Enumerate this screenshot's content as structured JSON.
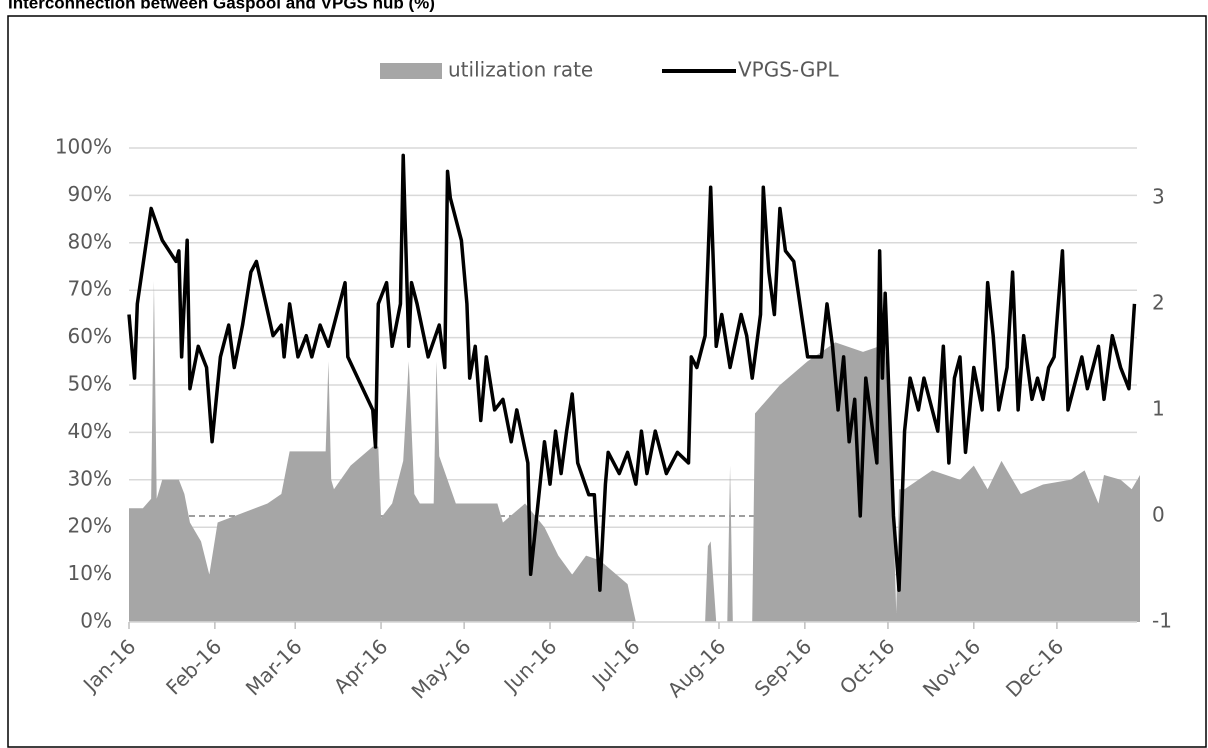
{
  "chart_data": {
    "type": "area-line",
    "title": "Interconnection between Gaspool and VPGS hub (%)",
    "xlim": [
      0,
      365
    ],
    "xticks": [
      {
        "value": 0,
        "label": "Jan-16"
      },
      {
        "value": 31,
        "label": "Feb-16"
      },
      {
        "value": 60,
        "label": "Mar-16"
      },
      {
        "value": 91,
        "label": "Apr-16"
      },
      {
        "value": 121,
        "label": "May-16"
      },
      {
        "value": 152,
        "label": "Jun-16"
      },
      {
        "value": 182,
        "label": "Jul-16"
      },
      {
        "value": 213,
        "label": "Aug-16"
      },
      {
        "value": 244,
        "label": "Sep-16"
      },
      {
        "value": 274,
        "label": "Oct-16"
      },
      {
        "value": 305,
        "label": "Nov-16"
      },
      {
        "value": 335,
        "label": "Dec-16"
      }
    ],
    "ylim": [
      0,
      100
    ],
    "yticks": [
      {
        "value": 0,
        "label": "0%"
      },
      {
        "value": 10,
        "label": "10%"
      },
      {
        "value": 20,
        "label": "20%"
      },
      {
        "value": 30,
        "label": "30%"
      },
      {
        "value": 40,
        "label": "40%"
      },
      {
        "value": 50,
        "label": "50%"
      },
      {
        "value": 60,
        "label": "60%"
      },
      {
        "value": 70,
        "label": "70%"
      },
      {
        "value": 80,
        "label": "80%"
      },
      {
        "value": 90,
        "label": "90%"
      },
      {
        "value": 100,
        "label": "100%"
      }
    ],
    "y2lim": [
      -1,
      3.47
    ],
    "y2ticks": [
      -1,
      0,
      1,
      2,
      3
    ],
    "grid": true,
    "legend": "top",
    "series": [
      {
        "name": "utilization rate",
        "type": "area",
        "color": "#a6a6a6",
        "x": [
          0,
          5,
          8,
          9,
          10,
          12,
          18,
          20,
          22,
          26,
          29,
          32,
          50,
          55,
          58,
          70,
          71,
          72,
          73,
          74,
          80,
          88,
          90,
          91,
          95,
          99,
          101,
          103,
          105,
          110,
          111,
          112,
          118,
          130,
          133,
          135,
          143,
          150,
          155,
          160,
          165,
          170,
          180,
          183,
          208,
          209,
          210,
          212,
          213,
          216,
          217,
          218,
          219,
          225,
          226,
          235,
          245,
          250,
          255,
          265,
          270,
          273,
          275,
          277,
          278,
          280,
          290,
          300,
          305,
          310,
          315,
          322,
          330,
          340,
          345,
          350,
          352,
          358,
          362,
          365
        ],
        "values": [
          24,
          24,
          26,
          72,
          26,
          30,
          30,
          27,
          21,
          17,
          10,
          21,
          25,
          27,
          36,
          36,
          36,
          55,
          30,
          28,
          33,
          37,
          37,
          22,
          25,
          34,
          55,
          27,
          25,
          25,
          55,
          35,
          25,
          25,
          25,
          21,
          25,
          20,
          14,
          10,
          14,
          13,
          8,
          0,
          0,
          16,
          17,
          0,
          0,
          0,
          33,
          0,
          0,
          0,
          44,
          50,
          55,
          57,
          59,
          57,
          58,
          57,
          40,
          2,
          28,
          28,
          32,
          30,
          33,
          28,
          34,
          27,
          29,
          30,
          32,
          25,
          31,
          30,
          28,
          31
        ]
      },
      {
        "name": "VPGS-GPL",
        "type": "line",
        "color": "#000000",
        "axis": "y2",
        "x": [
          0,
          2,
          3,
          8,
          12,
          17,
          18,
          19,
          21,
          22,
          25,
          28,
          30,
          33,
          36,
          38,
          41,
          44,
          46,
          52,
          55,
          56,
          58,
          61,
          64,
          66,
          69,
          72,
          78,
          79,
          88,
          89,
          90,
          93,
          95,
          98,
          99,
          101,
          102,
          104,
          108,
          112,
          114,
          115,
          116,
          120,
          122,
          123,
          125,
          127,
          129,
          132,
          135,
          138,
          140,
          144,
          145,
          148,
          150,
          152,
          154,
          156,
          158,
          160,
          162,
          166,
          168,
          170,
          172,
          173,
          177,
          180,
          183,
          185,
          187,
          190,
          194,
          198,
          202,
          203,
          205,
          208,
          210,
          212,
          214,
          217,
          221,
          223,
          225,
          228,
          229,
          231,
          233,
          235,
          237,
          240,
          245,
          250,
          252,
          254,
          256,
          258,
          260,
          262,
          264,
          266,
          268,
          270,
          271,
          272,
          273,
          276,
          278,
          280,
          282,
          285,
          287,
          290,
          292,
          294,
          296,
          298,
          300,
          302,
          305,
          308,
          310,
          312,
          314,
          317,
          319,
          321,
          323,
          326,
          328,
          330,
          332,
          334,
          337,
          339,
          341,
          344,
          346,
          350,
          352,
          355,
          358,
          361,
          363
        ],
        "values": [
          1.9,
          1.3,
          2.0,
          2.9,
          2.6,
          2.4,
          2.5,
          1.5,
          2.6,
          1.2,
          1.6,
          1.4,
          0.7,
          1.5,
          1.8,
          1.4,
          1.8,
          2.3,
          2.4,
          1.7,
          1.8,
          1.5,
          2.0,
          1.5,
          1.7,
          1.5,
          1.8,
          1.6,
          2.2,
          1.5,
          1.0,
          0.65,
          2.0,
          2.2,
          1.6,
          2.0,
          3.4,
          1.6,
          2.2,
          2.0,
          1.5,
          1.8,
          1.4,
          3.25,
          3.0,
          2.6,
          2.0,
          1.3,
          1.6,
          0.9,
          1.5,
          1.0,
          1.1,
          0.7,
          1.0,
          0.5,
          -0.55,
          0.2,
          0.7,
          0.3,
          0.8,
          0.4,
          0.8,
          1.15,
          0.5,
          0.2,
          0.2,
          -0.7,
          0.3,
          0.6,
          0.4,
          0.6,
          0.3,
          0.8,
          0.4,
          0.8,
          0.4,
          0.6,
          0.5,
          1.5,
          1.4,
          1.7,
          3.1,
          1.6,
          1.9,
          1.4,
          1.9,
          1.7,
          1.3,
          1.9,
          3.1,
          2.3,
          1.9,
          2.9,
          2.5,
          2.4,
          1.5,
          1.5,
          2.0,
          1.6,
          1.0,
          1.5,
          0.7,
          1.1,
          0.0,
          1.3,
          0.9,
          0.5,
          2.5,
          1.3,
          2.1,
          0.0,
          -0.7,
          0.8,
          1.3,
          1.0,
          1.3,
          1.0,
          0.8,
          1.6,
          0.5,
          1.3,
          1.5,
          0.6,
          1.4,
          1.0,
          2.2,
          1.7,
          1.0,
          1.4,
          2.3,
          1.0,
          1.7,
          1.1,
          1.3,
          1.1,
          1.4,
          1.5,
          2.5,
          1.0,
          1.2,
          1.5,
          1.2,
          1.6,
          1.1,
          1.7,
          1.4,
          1.2,
          2.0
        ]
      }
    ]
  }
}
